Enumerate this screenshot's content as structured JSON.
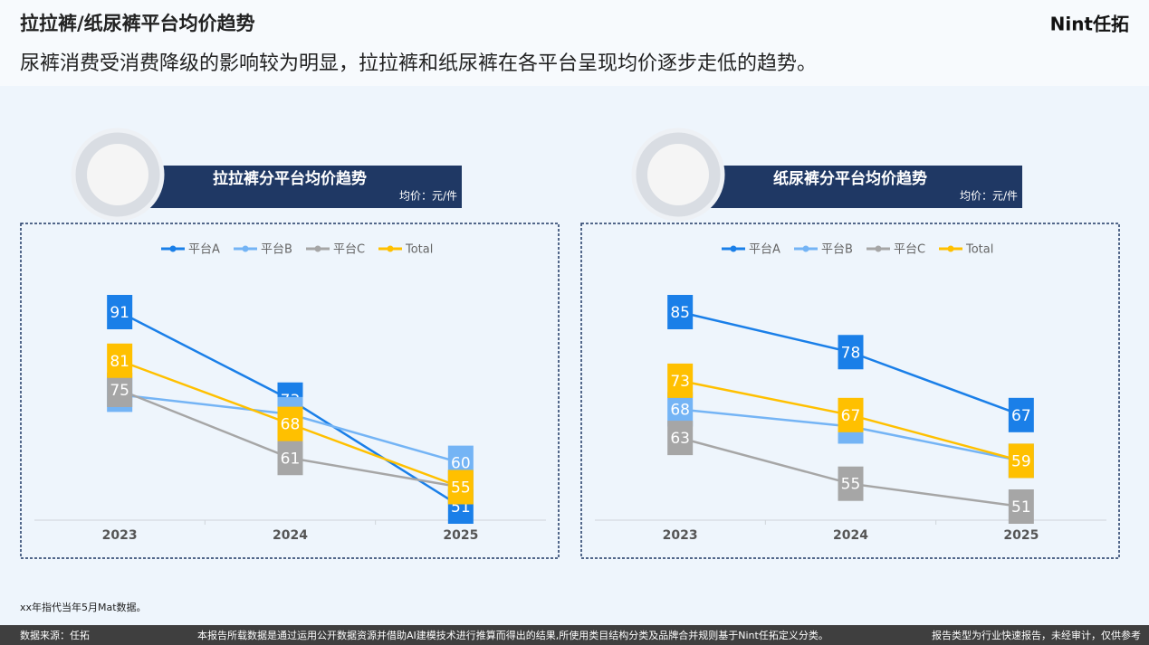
{
  "header": {
    "title": "拉拉裤/纸尿裤平台均价趋势",
    "subtitle": "尿裤消费受消费降级的影响较为明显，拉拉裤和纸尿裤在各平台呈现均价逐步走低的趋势。",
    "brand": "Nint任拓"
  },
  "chart_data": [
    {
      "type": "line",
      "title": "拉拉裤分平台均价趋势",
      "unit": "均价：元/件",
      "categories": [
        "2023",
        "2024",
        "2025"
      ],
      "series": [
        {
          "name": "平台A",
          "color": "#1a7fe8",
          "values": [
            91,
            73,
            51
          ]
        },
        {
          "name": "平台B",
          "color": "#74b4f5",
          "values": [
            74,
            70,
            60
          ]
        },
        {
          "name": "平台C",
          "color": "#a6a6a6",
          "values": [
            75,
            61,
            55
          ]
        },
        {
          "name": "Total",
          "color": "#ffc000",
          "values": [
            81,
            68,
            55
          ]
        }
      ]
    },
    {
      "type": "line",
      "title": "纸尿裤分平台均价趋势",
      "unit": "均价：元/件",
      "categories": [
        "2023",
        "2024",
        "2025"
      ],
      "series": [
        {
          "name": "平台A",
          "color": "#1a7fe8",
          "values": [
            85,
            78,
            67
          ]
        },
        {
          "name": "平台B",
          "color": "#74b4f5",
          "values": [
            68,
            65,
            59
          ]
        },
        {
          "name": "平台C",
          "color": "#a6a6a6",
          "values": [
            63,
            55,
            51
          ]
        },
        {
          "name": "Total",
          "color": "#ffc000",
          "values": [
            73,
            67,
            59
          ]
        }
      ]
    }
  ],
  "note": "xx年指代当年5月Mat数据。",
  "footer": {
    "source": "数据来源：任拓",
    "disclaimer": "本报告所载数据是通过运用公开数据资源并借助AI建模技术进行推算而得出的结果,所使用类目结构分类及品牌合并规则基于Nint任拓定义分类。",
    "report_type": "报告类型为行业快速报告，未经审计，仅供参考"
  }
}
